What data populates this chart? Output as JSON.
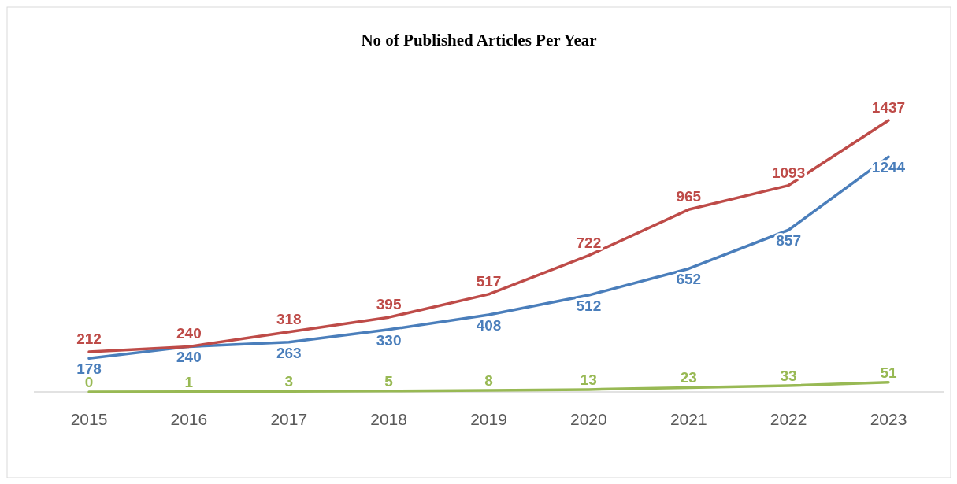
{
  "chart_data": {
    "type": "line",
    "title": "No of Published Articles Per Year",
    "categories": [
      "2015",
      "2016",
      "2017",
      "2018",
      "2019",
      "2020",
      "2021",
      "2022",
      "2023"
    ],
    "data_labels": true,
    "line_style": "solid",
    "series": [
      {
        "color": "#4a7ebb",
        "values": [
          178,
          240,
          263,
          330,
          408,
          512,
          652,
          857,
          1244
        ]
      },
      {
        "color": "#be4b48",
        "values": [
          212,
          240,
          318,
          395,
          517,
          722,
          965,
          1093,
          1437
        ]
      },
      {
        "color": "#98b954",
        "values": [
          0,
          1,
          3,
          5,
          8,
          13,
          23,
          33,
          51
        ]
      }
    ]
  }
}
